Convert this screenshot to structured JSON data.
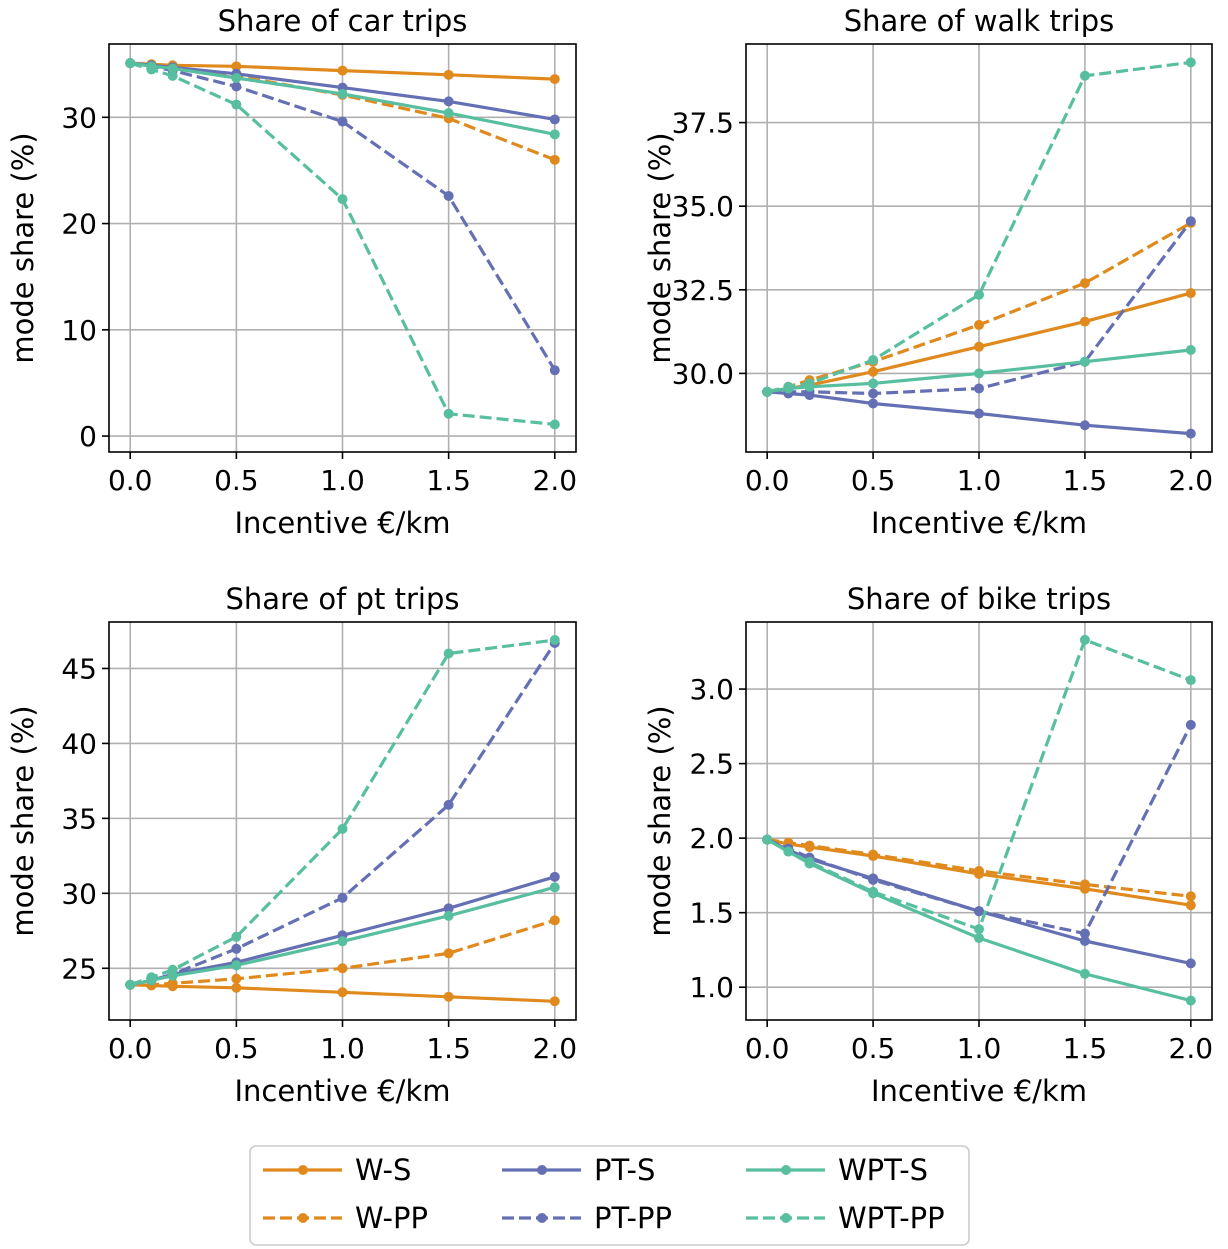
{
  "chart_data": [
    {
      "type": "line",
      "title": "Share of car trips",
      "xlabel": "Incentive €/km",
      "ylabel": "mode share (%)",
      "x": [
        0.0,
        0.1,
        0.2,
        0.5,
        1.0,
        1.5,
        2.0
      ],
      "xticks": [
        0.0,
        0.5,
        1.0,
        1.5,
        2.0
      ],
      "xtick_labels": [
        "0.0",
        "0.5",
        "1.0",
        "1.5",
        "2.0"
      ],
      "yticks": [
        0,
        10,
        20,
        30
      ],
      "ytick_labels": [
        "0",
        "10",
        "20",
        "30"
      ],
      "xlim": [
        -0.1,
        2.1
      ],
      "ylim": [
        -1.5,
        36.9
      ],
      "grid": true,
      "series": [
        {
          "name": "W-S",
          "values": [
            35.1,
            35.0,
            34.9,
            34.8,
            34.4,
            34.0,
            33.6
          ]
        },
        {
          "name": "W-PP",
          "values": [
            35.1,
            34.9,
            34.7,
            33.9,
            32.1,
            29.9,
            26.0
          ]
        },
        {
          "name": "PT-S",
          "values": [
            35.1,
            34.9,
            34.7,
            34.1,
            32.8,
            31.5,
            29.8
          ]
        },
        {
          "name": "PT-PP",
          "values": [
            35.1,
            34.8,
            34.4,
            32.9,
            29.6,
            22.6,
            6.2
          ]
        },
        {
          "name": "WPT-S",
          "values": [
            35.1,
            34.8,
            34.6,
            33.7,
            32.2,
            30.4,
            28.4
          ]
        },
        {
          "name": "WPT-PP",
          "values": [
            35.1,
            34.5,
            33.9,
            31.2,
            22.3,
            2.1,
            1.1
          ]
        }
      ]
    },
    {
      "type": "line",
      "title": "Share of walk trips",
      "xlabel": "Incentive €/km",
      "ylabel": "mode share (%)",
      "x": [
        0.0,
        0.1,
        0.2,
        0.5,
        1.0,
        1.5,
        2.0
      ],
      "xticks": [
        0.0,
        0.5,
        1.0,
        1.5,
        2.0
      ],
      "xtick_labels": [
        "0.0",
        "0.5",
        "1.0",
        "1.5",
        "2.0"
      ],
      "yticks": [
        30.0,
        32.5,
        35.0,
        37.5
      ],
      "ytick_labels": [
        "30.0",
        "32.5",
        "35.0",
        "37.5"
      ],
      "xlim": [
        -0.1,
        2.1
      ],
      "ylim": [
        27.65,
        39.85
      ],
      "grid": true,
      "series": [
        {
          "name": "W-S",
          "values": [
            29.45,
            29.55,
            29.65,
            30.05,
            30.8,
            31.55,
            32.4
          ]
        },
        {
          "name": "W-PP",
          "values": [
            29.45,
            29.6,
            29.8,
            30.35,
            31.45,
            32.7,
            34.5
          ]
        },
        {
          "name": "PT-S",
          "values": [
            29.45,
            29.4,
            29.35,
            29.1,
            28.8,
            28.45,
            28.2
          ]
        },
        {
          "name": "PT-PP",
          "values": [
            29.45,
            29.45,
            29.45,
            29.4,
            29.55,
            30.35,
            34.55
          ]
        },
        {
          "name": "WPT-S",
          "values": [
            29.45,
            29.55,
            29.6,
            29.7,
            30.0,
            30.35,
            30.7
          ]
        },
        {
          "name": "WPT-PP",
          "values": [
            29.45,
            29.6,
            29.7,
            30.4,
            32.35,
            38.9,
            39.3
          ]
        }
      ]
    },
    {
      "type": "line",
      "title": "Share of pt trips",
      "xlabel": "Incentive €/km",
      "ylabel": "mode share (%)",
      "x": [
        0.0,
        0.1,
        0.2,
        0.5,
        1.0,
        1.5,
        2.0
      ],
      "xticks": [
        0.0,
        0.5,
        1.0,
        1.5,
        2.0
      ],
      "xtick_labels": [
        "0.0",
        "0.5",
        "1.0",
        "1.5",
        "2.0"
      ],
      "yticks": [
        25,
        30,
        35,
        40,
        45
      ],
      "ytick_labels": [
        "25",
        "30",
        "35",
        "40",
        "45"
      ],
      "xlim": [
        -0.1,
        2.1
      ],
      "ylim": [
        21.55,
        48.1
      ],
      "grid": true,
      "series": [
        {
          "name": "W-S",
          "values": [
            23.9,
            23.85,
            23.8,
            23.7,
            23.4,
            23.1,
            22.8
          ]
        },
        {
          "name": "W-PP",
          "values": [
            23.9,
            23.9,
            24.0,
            24.3,
            25.0,
            26.0,
            28.2
          ]
        },
        {
          "name": "PT-S",
          "values": [
            23.9,
            24.2,
            24.6,
            25.4,
            27.2,
            29.0,
            31.1
          ]
        },
        {
          "name": "PT-PP",
          "values": [
            23.9,
            24.2,
            24.6,
            26.3,
            29.7,
            35.9,
            46.7
          ]
        },
        {
          "name": "WPT-S",
          "values": [
            23.9,
            24.2,
            24.5,
            25.2,
            26.8,
            28.5,
            30.4
          ]
        },
        {
          "name": "WPT-PP",
          "values": [
            23.9,
            24.4,
            24.9,
            27.1,
            34.3,
            46.0,
            46.9
          ]
        }
      ]
    },
    {
      "type": "line",
      "title": "Share of bike trips",
      "xlabel": "Incentive €/km",
      "ylabel": "mode share (%)",
      "x": [
        0.0,
        0.1,
        0.2,
        0.5,
        1.0,
        1.5,
        2.0
      ],
      "xticks": [
        0.0,
        0.5,
        1.0,
        1.5,
        2.0
      ],
      "xtick_labels": [
        "0.0",
        "0.5",
        "1.0",
        "1.5",
        "2.0"
      ],
      "yticks": [
        1.0,
        1.5,
        2.0,
        2.5,
        3.0
      ],
      "ytick_labels": [
        "1.0",
        "1.5",
        "2.0",
        "2.5",
        "3.0"
      ],
      "xlim": [
        -0.1,
        2.1
      ],
      "ylim": [
        0.78,
        3.45
      ],
      "grid": true,
      "series": [
        {
          "name": "W-S",
          "values": [
            1.99,
            1.96,
            1.94,
            1.88,
            1.76,
            1.66,
            1.55
          ]
        },
        {
          "name": "W-PP",
          "values": [
            1.99,
            1.97,
            1.95,
            1.89,
            1.78,
            1.69,
            1.61
          ]
        },
        {
          "name": "PT-S",
          "values": [
            1.99,
            1.92,
            1.86,
            1.73,
            1.51,
            1.31,
            1.16
          ]
        },
        {
          "name": "PT-PP",
          "values": [
            1.99,
            1.93,
            1.87,
            1.72,
            1.51,
            1.36,
            2.76
          ]
        },
        {
          "name": "WPT-S",
          "values": [
            1.99,
            1.91,
            1.83,
            1.63,
            1.33,
            1.09,
            0.91
          ]
        },
        {
          "name": "WPT-PP",
          "values": [
            1.99,
            1.91,
            1.84,
            1.64,
            1.39,
            3.33,
            3.06
          ]
        }
      ]
    }
  ],
  "legend": {
    "position": "bottom-center",
    "items": [
      {
        "name": "W-S",
        "color": "#e08a1e",
        "dash": false
      },
      {
        "name": "W-PP",
        "color": "#e08a1e",
        "dash": true
      },
      {
        "name": "PT-S",
        "color": "#6470b3",
        "dash": false
      },
      {
        "name": "PT-PP",
        "color": "#6470b3",
        "dash": true
      },
      {
        "name": "WPT-S",
        "color": "#57bfa0",
        "dash": false
      },
      {
        "name": "WPT-PP",
        "color": "#57bfa0",
        "dash": true
      }
    ]
  },
  "colors": {
    "W": "#e08a1e",
    "PT": "#6470b3",
    "WPT": "#57bfa0",
    "grid": "#b0b0b0",
    "axes": "#000000"
  }
}
